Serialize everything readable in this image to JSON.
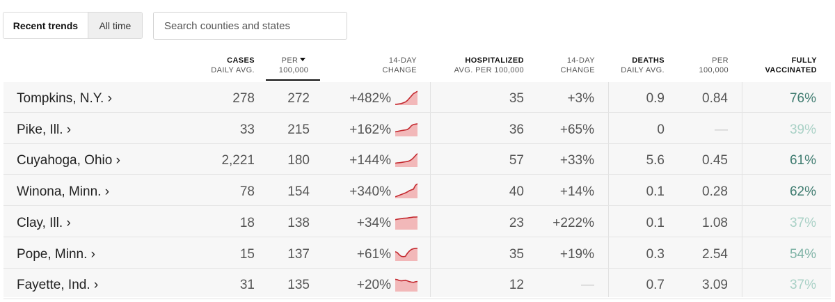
{
  "toggle": {
    "active_label": "Recent trends",
    "inactive_label": "All time"
  },
  "search": {
    "placeholder": "Search counties and states"
  },
  "headers": {
    "cases": {
      "line1": "Cases",
      "line2": "Daily avg."
    },
    "per100k": {
      "line1": "Per",
      "line2": "100,000"
    },
    "change14": {
      "line1": "14-day",
      "line2": "change"
    },
    "hosp": {
      "line1": "Hospitalized",
      "line2": "Avg. per 100,000"
    },
    "hosp_change": {
      "line1": "14-day",
      "line2": "change"
    },
    "deaths": {
      "line1": "Deaths",
      "line2": "Daily avg."
    },
    "deaths_per": {
      "line1": "Per",
      "line2": "100,000"
    },
    "vacc": {
      "line1": "Fully",
      "line2": "vaccinated"
    }
  },
  "colors": {
    "spark_line": "#c3282e",
    "spark_fill": "#f2b8b9",
    "vacc_high": "#3e7b6f",
    "vacc_mid": "#7fb3a6",
    "vacc_low": "#a9d1c6"
  },
  "rows": [
    {
      "name": "Tompkins, N.Y. ›",
      "cases": "278",
      "per": "272",
      "change": "+482%",
      "hosp": "35",
      "hosp_change": "+3%",
      "deaths": "0.9",
      "deaths_per": "0.84",
      "vacc": "76%",
      "vacc_level": "high",
      "spark": [
        0.05,
        0.06,
        0.08,
        0.1,
        0.15,
        0.2,
        0.3,
        0.45,
        0.6,
        0.75,
        0.82,
        0.9
      ]
    },
    {
      "name": "Pike, Ill. ›",
      "cases": "33",
      "per": "215",
      "change": "+162%",
      "hosp": "36",
      "hosp_change": "+65%",
      "deaths": "0",
      "deaths_per": "—",
      "vacc": "39%",
      "vacc_level": "low",
      "spark": [
        0.3,
        0.32,
        0.35,
        0.38,
        0.4,
        0.42,
        0.45,
        0.55,
        0.7,
        0.78,
        0.8,
        0.82
      ]
    },
    {
      "name": "Cuyahoga, Ohio ›",
      "cases": "2,221",
      "per": "180",
      "change": "+144%",
      "hosp": "57",
      "hosp_change": "+33%",
      "deaths": "5.6",
      "deaths_per": "0.45",
      "vacc": "61%",
      "vacc_level": "high",
      "spark": [
        0.25,
        0.27,
        0.28,
        0.3,
        0.32,
        0.34,
        0.36,
        0.4,
        0.48,
        0.6,
        0.75,
        0.88
      ]
    },
    {
      "name": "Winona, Minn. ›",
      "cases": "78",
      "per": "154",
      "change": "+340%",
      "hosp": "40",
      "hosp_change": "+14%",
      "deaths": "0.1",
      "deaths_per": "0.28",
      "vacc": "62%",
      "vacc_level": "high",
      "spark": [
        0.1,
        0.15,
        0.2,
        0.25,
        0.3,
        0.35,
        0.42,
        0.5,
        0.55,
        0.6,
        0.85,
        0.95
      ]
    },
    {
      "name": "Clay, Ill. ›",
      "cases": "18",
      "per": "138",
      "change": "+34%",
      "hosp": "23",
      "hosp_change": "+222%",
      "deaths": "0.1",
      "deaths_per": "1.08",
      "vacc": "37%",
      "vacc_level": "low",
      "spark": [
        0.65,
        0.68,
        0.7,
        0.72,
        0.74,
        0.75,
        0.76,
        0.78,
        0.8,
        0.82,
        0.82,
        0.83
      ]
    },
    {
      "name": "Pope, Minn. ›",
      "cases": "15",
      "per": "137",
      "change": "+61%",
      "hosp": "35",
      "hosp_change": "+19%",
      "deaths": "0.3",
      "deaths_per": "2.54",
      "vacc": "54%",
      "vacc_level": "mid",
      "spark": [
        0.6,
        0.55,
        0.4,
        0.3,
        0.28,
        0.3,
        0.5,
        0.65,
        0.75,
        0.8,
        0.82,
        0.83
      ]
    },
    {
      "name": "Fayette, Ind. ›",
      "cases": "31",
      "per": "135",
      "change": "+20%",
      "hosp": "12",
      "hosp_change": "—",
      "deaths": "0.7",
      "deaths_per": "3.09",
      "vacc": "37%",
      "vacc_level": "low",
      "spark": [
        0.8,
        0.78,
        0.72,
        0.7,
        0.72,
        0.74,
        0.7,
        0.65,
        0.62,
        0.6,
        0.64,
        0.66
      ]
    }
  ]
}
